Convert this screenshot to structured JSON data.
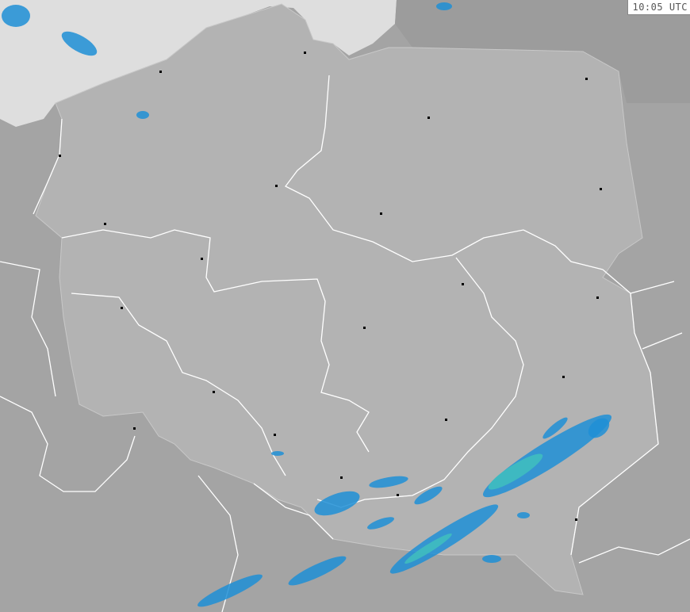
{
  "timestamp": "10:05 UTC",
  "colors": {
    "background": "#a4a4a4",
    "country": "#b3b3b3",
    "sea": "#dedede",
    "border": "#ffffff",
    "radar_light": "#1e8fd6",
    "radar_medium": "#3fbcbf",
    "city": "#000000"
  }
}
